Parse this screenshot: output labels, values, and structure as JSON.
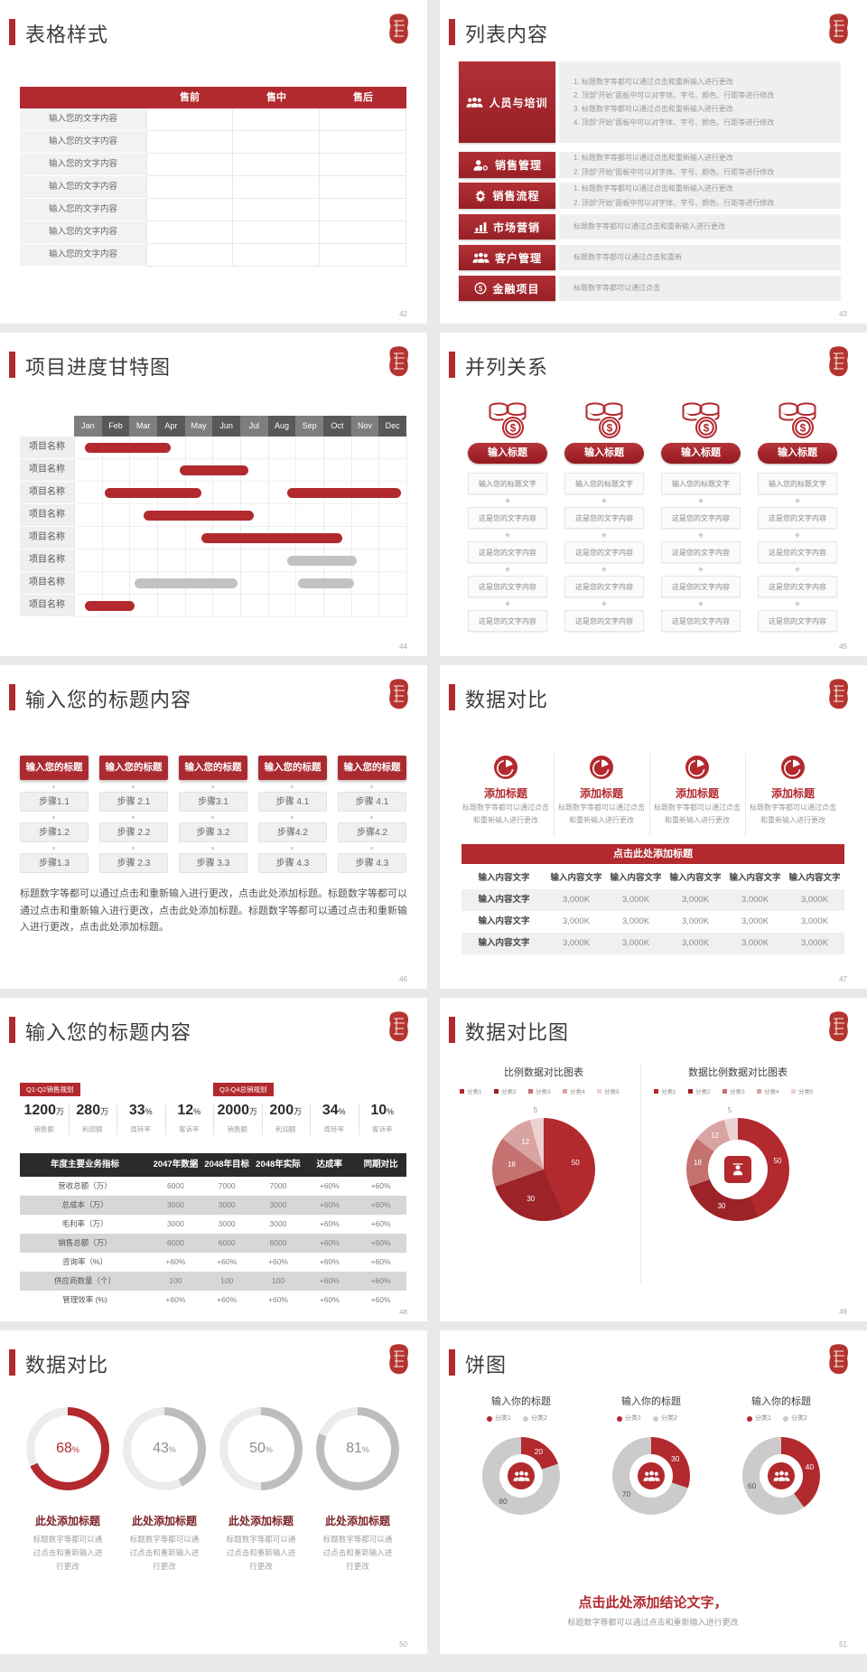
{
  "page": {
    "background": "#e9e9e9",
    "accent": "#b2292e"
  },
  "slides": {
    "s42": {
      "title": "表格样式",
      "page": "42",
      "table": {
        "headers": [
          "售前",
          "售中",
          "售后"
        ],
        "row_label": "输入您的文字内容",
        "row_count": 7
      }
    },
    "s43": {
      "title": "列表内容",
      "page": "43",
      "items": [
        {
          "icon": "people-icon",
          "label": "人员与培训",
          "lines": [
            "1.  标题数字等都可以通过点击和重新输入进行更改",
            "2.  顶部“开始”面板中可以对字体、字号、颜色、行距等进行修改",
            "3.  标题数字等都可以通过点击和重新输入进行更改",
            "4.  顶部“开始”面板中可以对字体、字号、颜色、行距等进行修改"
          ]
        },
        {
          "icon": "person-gear-icon",
          "label": "销售管理",
          "lines": [
            "1.  标题数字等都可以通过点击和重新输入进行更改",
            "2.  顶部“开始”面板中可以对字体、字号、颜色、行距等进行修改"
          ]
        },
        {
          "icon": "gear-icon",
          "label": "销售流程",
          "lines": [
            "1.  标题数字等都可以通过点击和重新输入进行更改",
            "2.  顶部“开始”面板中可以对字体、字号、颜色、行距等进行修改"
          ]
        },
        {
          "icon": "bar-chart-icon",
          "label": "市场营销",
          "lines": [
            "标题数字等都可以通过点击和重新输入进行更改"
          ]
        },
        {
          "icon": "customers-icon",
          "label": "客户管理",
          "lines": [
            "标题数字等都可以通过点击和重新"
          ]
        },
        {
          "icon": "coin-icon",
          "label": "金融项目",
          "lines": [
            "标题数字等都可以通过点击"
          ]
        }
      ]
    },
    "s44": {
      "title": "项目进度甘特图",
      "page": "44",
      "chart_data": {
        "type": "gantt",
        "months": [
          "Jan",
          "Feb",
          "Mar",
          "Apr",
          "May",
          "Jun",
          "Jul",
          "Aug",
          "Sep",
          "Oct",
          "Nov",
          "Dec"
        ],
        "rows": [
          {
            "label": "项目名称",
            "bars": [
              {
                "start": 0.4,
                "end": 3.5,
                "color": "red"
              }
            ]
          },
          {
            "label": "项目名称",
            "bars": [
              {
                "start": 3.8,
                "end": 6.3,
                "color": "red"
              }
            ]
          },
          {
            "label": "项目名称",
            "bars": [
              {
                "start": 1.1,
                "end": 4.6,
                "color": "red"
              },
              {
                "start": 7.7,
                "end": 11.8,
                "color": "red"
              }
            ]
          },
          {
            "label": "项目名称",
            "bars": [
              {
                "start": 2.5,
                "end": 6.5,
                "color": "red"
              }
            ]
          },
          {
            "label": "项目名称",
            "bars": [
              {
                "start": 4.6,
                "end": 9.7,
                "color": "red"
              }
            ]
          },
          {
            "label": "项目名称",
            "bars": [
              {
                "start": 7.7,
                "end": 10.2,
                "color": "gray"
              }
            ]
          },
          {
            "label": "项目名称",
            "bars": [
              {
                "start": 2.2,
                "end": 5.9,
                "color": "gray"
              },
              {
                "start": 8.1,
                "end": 10.1,
                "color": "gray"
              }
            ]
          },
          {
            "label": "项目名称",
            "bars": [
              {
                "start": 0.4,
                "end": 2.2,
                "color": "red"
              }
            ]
          }
        ]
      }
    },
    "s45": {
      "title": "并列关系",
      "page": "45",
      "column_count": 4,
      "icon": "coins-icon",
      "button_label": "输入标题",
      "cells": [
        "输入您的标题文字",
        "这是您的文字内容",
        "这是您的文字内容",
        "这是您的文字内容",
        "这是您的文字内容"
      ]
    },
    "s46": {
      "title": "输入您的标题内容",
      "page": "46",
      "header_label": "输入您的标题",
      "columns": [
        [
          "步骤1.1",
          "步骤1.2",
          "步骤1.3"
        ],
        [
          "步骤 2.1",
          "步骤 2.2",
          "步骤 2.3"
        ],
        [
          "步骤3.1",
          "步骤 3.2",
          "步骤 3.3"
        ],
        [
          "步骤 4.1",
          "步骤4.2",
          "步骤 4.3"
        ],
        [
          "步骤 4.1",
          "步骤4.2",
          "步骤 4.3"
        ]
      ],
      "paragraph": "标题数字等都可以通过点击和重新输入进行更改，点击此处添加标题。标题数字等都可以通过点击和重新输入进行更改，点击此处添加标题。标题数字等都可以通过点击和重新输入进行更改，点击此处添加标题。"
    },
    "s47": {
      "title": "数据对比",
      "page": "47",
      "features": [
        {
          "icon": "pie-icon",
          "title": "添加标题",
          "desc": "标题数字等都可以通过点击和重新输入进行更改"
        },
        {
          "icon": "pie-icon",
          "title": "添加标题",
          "desc": "标题数字等都可以通过点击和重新输入进行更改"
        },
        {
          "icon": "pie-icon",
          "title": "添加标题",
          "desc": "标题数字等都可以通过点击和重新输入进行更改"
        },
        {
          "icon": "pie-icon",
          "title": "添加标题",
          "desc": "标题数字等都可以通过点击和重新输入进行更改"
        }
      ],
      "band_title": "点击此处添加标题",
      "chart_data": {
        "type": "table",
        "header": [
          "输入内容文字",
          "输入内容文字",
          "输入内容文字",
          "输入内容文字",
          "输入内容文字",
          "输入内容文字"
        ],
        "rows": [
          [
            "输入内容文字",
            "3,000K",
            "3,000K",
            "3,000K",
            "3,000K",
            "3,000K"
          ],
          [
            "输入内容文字",
            "3,000K",
            "3,000K",
            "3,000K",
            "3,000K",
            "3,000K"
          ],
          [
            "输入内容文字",
            "3,000K",
            "3,000K",
            "3,000K",
            "3,000K",
            "3,000K"
          ]
        ]
      }
    },
    "s48": {
      "title": "输入您的标题内容",
      "page": "48",
      "badges": [
        "Q1-Q2销售规划",
        "Q3-Q4总销规划"
      ],
      "stats": [
        {
          "value": "1200",
          "unit": "万",
          "label": "销售额"
        },
        {
          "value": "280",
          "unit": "万",
          "label": "利润额"
        },
        {
          "value": "33",
          "unit": "%",
          "label": "周转率"
        },
        {
          "value": "12",
          "unit": "%",
          "label": "客诉率"
        },
        {
          "value": "2000",
          "unit": "万",
          "label": "销售额"
        },
        {
          "value": "200",
          "unit": "万",
          "label": "利润额"
        },
        {
          "value": "34",
          "unit": "%",
          "label": "周转率"
        },
        {
          "value": "10",
          "unit": "%",
          "label": "客诉率"
        }
      ],
      "chart_data": {
        "type": "table",
        "header": [
          "年度主要业务指标",
          "2047年数据",
          "2048年目标",
          "2048年实际",
          "达成率",
          "同期对比"
        ],
        "rows": [
          [
            "营收总额（万）",
            "6000",
            "7000",
            "7000",
            "+60%",
            "+60%"
          ],
          [
            "总成本（万）",
            "3000",
            "3000",
            "3000",
            "+60%",
            "+60%"
          ],
          [
            "毛利率（万）",
            "3000",
            "3000",
            "3000",
            "+60%",
            "+60%"
          ],
          [
            "销售总额（万）",
            "6000",
            "6000",
            "6000",
            "+60%",
            "+60%"
          ],
          [
            "咨询率（%）",
            "+60%",
            "+60%",
            "+60%",
            "+60%",
            "+60%"
          ],
          [
            "供应商数量（个）",
            "100",
            "100",
            "100",
            "+60%",
            "+60%"
          ],
          [
            "管理效率 (%)",
            "+60%",
            "+60%",
            "+60%",
            "+60%",
            "+60%"
          ]
        ]
      }
    },
    "s49": {
      "title": "数据对比图",
      "page": "49",
      "chart_data": [
        {
          "type": "pie",
          "title": "比例数据对比图表",
          "legend": [
            "分类1",
            "分类2",
            "分类3",
            "分类4",
            "分类5"
          ],
          "values": [
            50,
            30,
            18,
            12,
            5
          ],
          "colors": [
            "#b2292e",
            "#9c2328",
            "#c5716f",
            "#d9a3a2",
            "#ecd2d1"
          ]
        },
        {
          "type": "donut",
          "title": "数据比例数据对比图表",
          "legend": [
            "分类1",
            "分类2",
            "分类3",
            "分类4",
            "分类5"
          ],
          "values": [
            50,
            30,
            18,
            12,
            5
          ],
          "colors": [
            "#b2292e",
            "#9c2328",
            "#c5716f",
            "#d9a3a2",
            "#ecd2d1"
          ]
        }
      ]
    },
    "s50": {
      "title": "数据对比",
      "page": "50",
      "item_title": "此处添加标题",
      "item_desc": "标题数字等都可以通过点击和重新输入进行更改",
      "chart_data": {
        "type": "donut-progress",
        "values": [
          68,
          43,
          50,
          81
        ],
        "unit": "%"
      }
    },
    "s51": {
      "title": "饼图",
      "page": "51",
      "chart_title": "输入你的标题",
      "legend": [
        "分类1",
        "分类2"
      ],
      "chart_data": {
        "type": "donut",
        "charts": [
          {
            "values": [
              20,
              80
            ]
          },
          {
            "values": [
              30,
              70
            ]
          },
          {
            "values": [
              40,
              60
            ]
          }
        ],
        "red": "#b2292e",
        "gray": "#cbcbcb"
      },
      "conclusion": "点击此处添加结论文字，",
      "note": "标题数字等都可以通过点击和重新输入进行更改"
    }
  }
}
